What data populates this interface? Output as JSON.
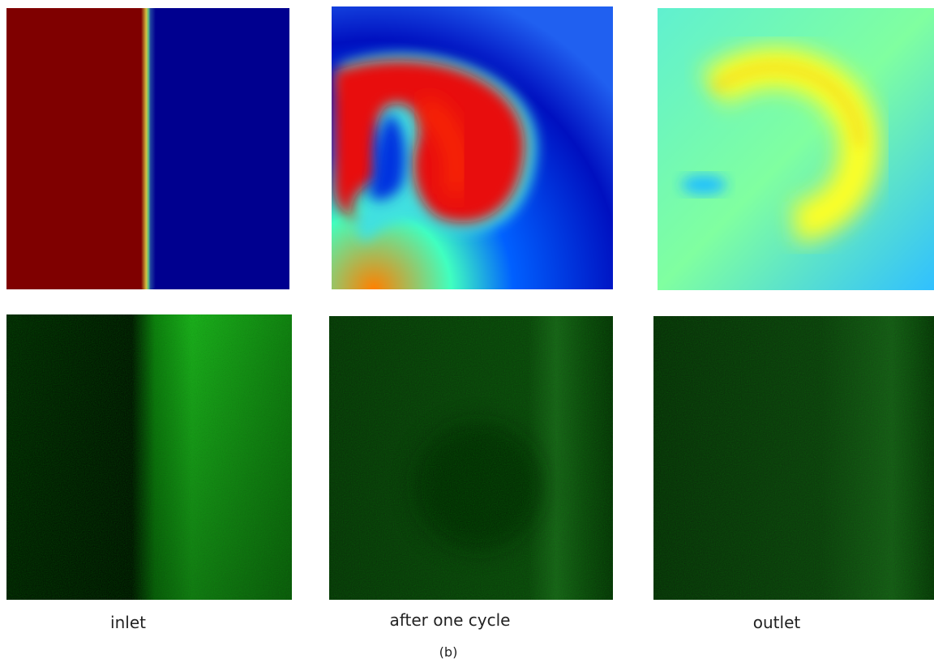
{
  "panels": [
    {
      "label": "inlet"
    },
    {
      "label": "after one cycle"
    },
    {
      "label": "outlet"
    }
  ],
  "caption": "(b)"
}
